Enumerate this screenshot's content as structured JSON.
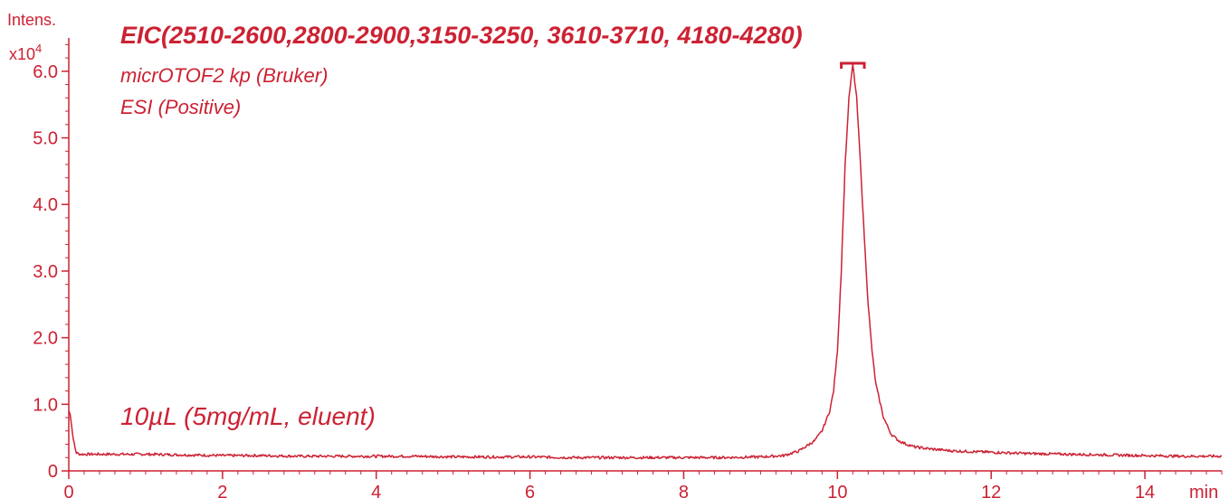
{
  "chart_data": {
    "type": "line",
    "title": "EIC(2510-2600,2800-2900,3150-3250, 3610-3710, 4180-4280)",
    "annotations": [
      "micrOTOF2 kp (Bruker)",
      "ESI (Positive)",
      "10µL (5mg/mL, eluent)"
    ],
    "ylabel": "Intens.",
    "y_multiplier": "x10",
    "y_exponent": "4",
    "xlabel": "min",
    "xlim": [
      0,
      15
    ],
    "ylim": [
      0,
      6.5
    ],
    "x_ticks": [
      0,
      2,
      4,
      6,
      8,
      10,
      12,
      14
    ],
    "y_ticks": [
      0,
      1.0,
      2.0,
      3.0,
      4.0,
      5.0,
      6.0
    ],
    "x_tick_labels": [
      "0",
      "2",
      "4",
      "6",
      "8",
      "10",
      "12",
      "14"
    ],
    "y_tick_labels": [
      "0",
      "1.0",
      "2.0",
      "3.0",
      "4.0",
      "5.0",
      "6.0"
    ],
    "peak_bracket": [
      10.05,
      10.35
    ],
    "color": "#cc2233",
    "series": [
      {
        "x": [
          0,
          0.02,
          0.05,
          0.08,
          0.1,
          0.15,
          0.2,
          0.5,
          1,
          1.5,
          2,
          2.5,
          3,
          3.5,
          4,
          4.5,
          5,
          5.5,
          6,
          6.5,
          7,
          7.5,
          8,
          8.5,
          9,
          9.3,
          9.5,
          9.7,
          9.8,
          9.9,
          9.95,
          10.0,
          10.05,
          10.1,
          10.15,
          10.2,
          10.25,
          10.3,
          10.35,
          10.4,
          10.45,
          10.5,
          10.6,
          10.7,
          10.8,
          10.9,
          11.0,
          11.2,
          11.5,
          12,
          12.5,
          13,
          13.5,
          14,
          14.5,
          15
        ],
        "values": [
          0.9,
          0.85,
          0.55,
          0.35,
          0.27,
          0.25,
          0.25,
          0.25,
          0.25,
          0.24,
          0.23,
          0.23,
          0.22,
          0.22,
          0.22,
          0.22,
          0.21,
          0.21,
          0.21,
          0.2,
          0.2,
          0.2,
          0.2,
          0.2,
          0.21,
          0.23,
          0.3,
          0.45,
          0.6,
          0.9,
          1.2,
          1.8,
          3.0,
          4.6,
          5.6,
          6.1,
          5.6,
          4.6,
          3.5,
          2.5,
          1.8,
          1.3,
          0.8,
          0.55,
          0.45,
          0.4,
          0.36,
          0.33,
          0.3,
          0.28,
          0.26,
          0.25,
          0.24,
          0.23,
          0.22,
          0.22
        ]
      }
    ]
  }
}
